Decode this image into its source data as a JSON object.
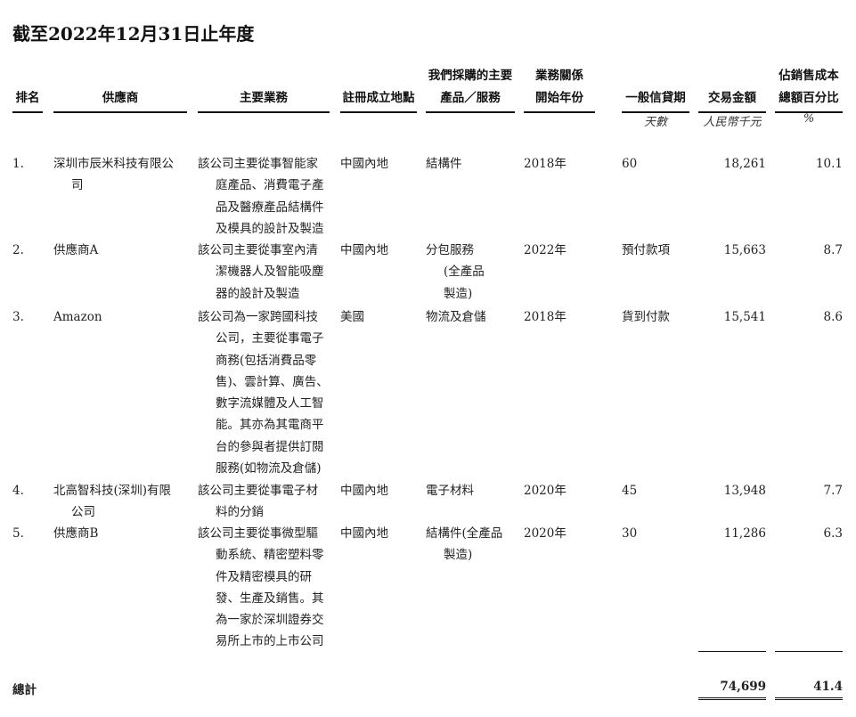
{
  "title": "截至2022年12月31日止年度",
  "headers": {
    "rank": "排名",
    "supplier": "供應商",
    "business": "主要業務",
    "place": "註冊成立地點",
    "product": [
      "我們採購的主要",
      "產品／服務"
    ],
    "year": [
      "業務關係",
      "開始年份"
    ],
    "credit": "一般信貸期",
    "amount": "交易金額",
    "pct": [
      "佔銷售成本",
      "總額百分比"
    ]
  },
  "units": {
    "credit": "天數",
    "amount": "人民幣千元",
    "pct": "%"
  },
  "rows": [
    {
      "rank": "1.",
      "supplier": [
        "深圳市辰米科技有限公",
        "司"
      ],
      "business": [
        "該公司主要從事智能家",
        "庭產品、消費電子產",
        "品及醫療產品結構件",
        "及模具的設計及製造"
      ],
      "place": "中國內地",
      "product": [
        "結構件"
      ],
      "year": "2018年",
      "credit": "60",
      "amount": "18,261",
      "pct": "10.1"
    },
    {
      "rank": "2.",
      "supplier": [
        "供應商A"
      ],
      "business": [
        "該公司主要從事室內清",
        "潔機器人及智能吸塵",
        "器的設計及製造"
      ],
      "place": "中國內地",
      "product": [
        "分包服務",
        "(全產品",
        "製造)"
      ],
      "year": "2022年",
      "credit": "預付款項",
      "amount": "15,663",
      "pct": "8.7"
    },
    {
      "rank": "3.",
      "supplier": [
        "Amazon"
      ],
      "business": [
        "該公司為一家跨國科技",
        "公司，主要從事電子",
        "商務(包括消費品零",
        "售)、雲計算、廣告、",
        "數字流媒體及人工智",
        "能。其亦為其電商平",
        "台的參與者提供訂閱",
        "服務(如物流及倉儲)"
      ],
      "place": "美國",
      "product": [
        "物流及倉儲"
      ],
      "year": "2018年",
      "credit": "貨到付款",
      "amount": "15,541",
      "pct": "8.6"
    },
    {
      "rank": "4.",
      "supplier": [
        "北高智科技(深圳)有限",
        "公司"
      ],
      "business": [
        "該公司主要從事電子材",
        "料的分銷"
      ],
      "place": "中國內地",
      "product": [
        "電子材料"
      ],
      "year": "2020年",
      "credit": "45",
      "amount": "13,948",
      "pct": "7.7"
    },
    {
      "rank": "5.",
      "supplier": [
        "供應商B"
      ],
      "business": [
        "該公司主要從事微型驅",
        "動系統、精密塑料零",
        "件及精密模具的研",
        "發、生產及銷售。其",
        "為一家於深圳證券交",
        "易所上市的上市公司"
      ],
      "place": "中國內地",
      "product": [
        "結構件(全產品",
        "製造)"
      ],
      "year": "2020年",
      "credit": "30",
      "amount": "11,286",
      "pct": "6.3"
    }
  ],
  "total": {
    "label": "總計",
    "amount": "74,699",
    "pct": "41.4"
  }
}
